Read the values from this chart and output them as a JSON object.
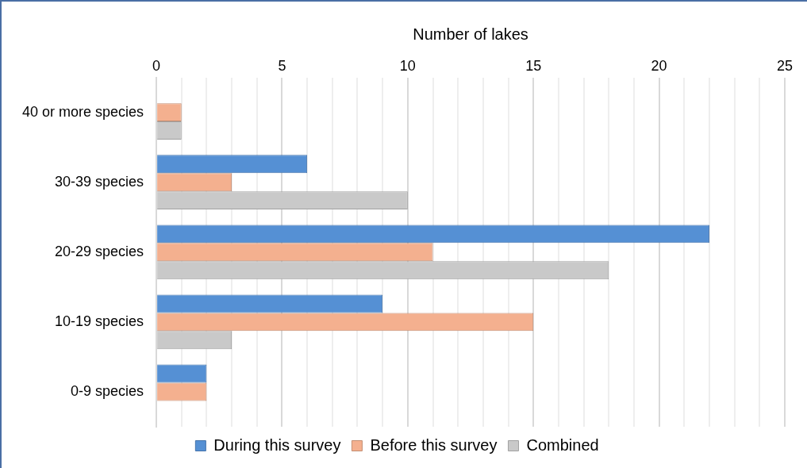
{
  "chart_data": {
    "type": "bar",
    "orientation": "horizontal",
    "xlabel": "Number of lakes",
    "categories": [
      "40 or more species",
      "30-39 species",
      "20-29 species",
      "10-19 species",
      "0-9 species"
    ],
    "series": [
      {
        "name": "During this survey",
        "color": "#5590d4",
        "values": [
          0,
          6,
          22,
          9,
          2
        ]
      },
      {
        "name": "Before this survey",
        "color": "#f4b08f",
        "values": [
          1,
          3,
          11,
          15,
          2
        ]
      },
      {
        "name": "Combined",
        "color": "#c9c9c9",
        "values": [
          1,
          10,
          18,
          3,
          0
        ]
      }
    ],
    "xlim": [
      0,
      25
    ],
    "xticks": [
      0,
      {
        "value": 1,
        "label": null
      },
      {
        "value": 2,
        "label": null
      },
      {
        "value": 3,
        "label": null
      },
      {
        "value": 4,
        "label": null
      },
      5,
      {
        "value": 6,
        "label": null
      },
      {
        "value": 7,
        "label": null
      },
      {
        "value": 8,
        "label": null
      },
      {
        "value": 9,
        "label": null
      },
      10,
      {
        "value": 11,
        "label": null
      },
      {
        "value": 12,
        "label": null
      },
      {
        "value": 13,
        "label": null
      },
      {
        "value": 14,
        "label": null
      },
      15,
      {
        "value": 16,
        "label": null
      },
      {
        "value": 17,
        "label": null
      },
      {
        "value": 18,
        "label": null
      },
      {
        "value": 19,
        "label": null
      },
      20,
      {
        "value": 21,
        "label": null
      },
      {
        "value": 22,
        "label": null
      },
      {
        "value": 23,
        "label": null
      },
      {
        "value": 24,
        "label": null
      },
      25
    ],
    "grid": "x",
    "legend": "bottom"
  }
}
